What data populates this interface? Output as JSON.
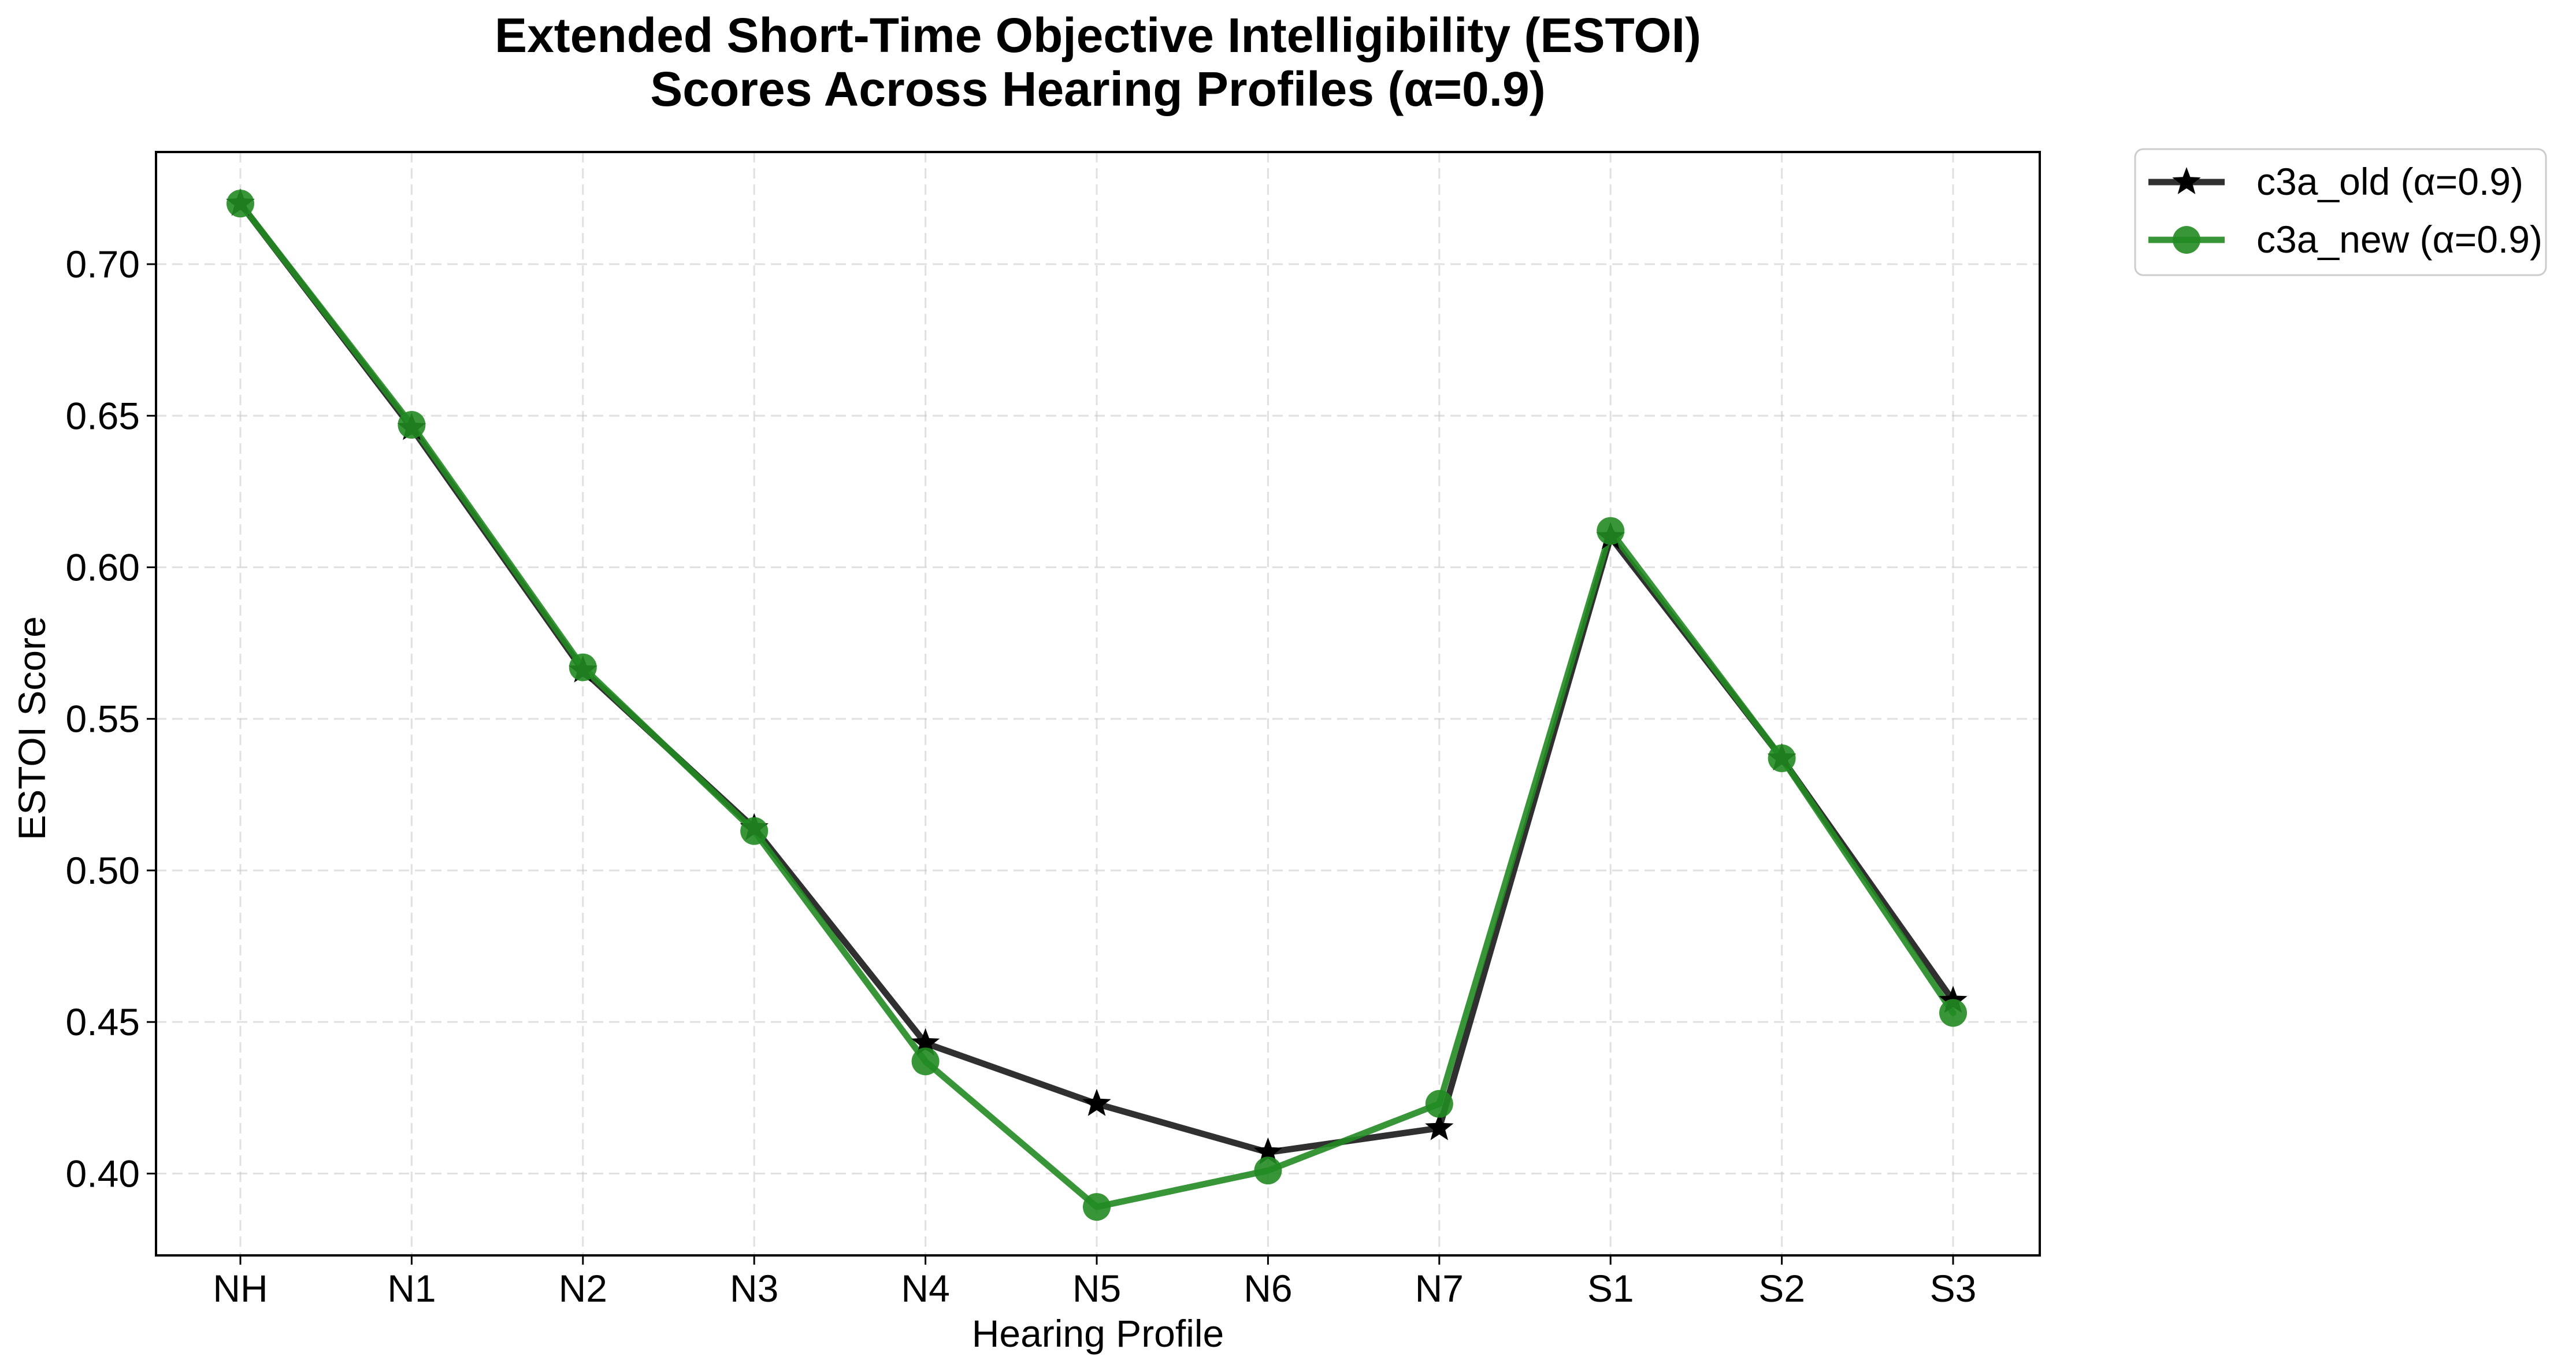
{
  "chart_data": {
    "type": "line",
    "title": "Extended Short-Time Objective Intelligibility (ESTOI)",
    "subtitle": "Scores Across Hearing Profiles (α=0.9)",
    "xlabel": "Hearing Profile",
    "ylabel": "ESTOI Score",
    "categories": [
      "NH",
      "N1",
      "N2",
      "N3",
      "N4",
      "N5",
      "N6",
      "N7",
      "S1",
      "S2",
      "S3"
    ],
    "ylim": [
      0.373,
      0.737
    ],
    "yticks": [
      0.4,
      0.45,
      0.5,
      0.55,
      0.6,
      0.65,
      0.7
    ],
    "ytick_labels": [
      "0.40",
      "0.45",
      "0.50",
      "0.55",
      "0.60",
      "0.65",
      "0.70"
    ],
    "grid": true,
    "legend_position": "outside top-right",
    "series": [
      {
        "name": "c3a_old (α=0.9)",
        "color": "#1a1a1a",
        "marker": "star",
        "values": [
          0.72,
          0.646,
          0.566,
          0.514,
          0.443,
          0.423,
          0.407,
          0.415,
          0.61,
          0.537,
          0.457
        ]
      },
      {
        "name": "c3a_new (α=0.9)",
        "color": "#228b22",
        "marker": "circle",
        "values": [
          0.72,
          0.647,
          0.567,
          0.513,
          0.437,
          0.389,
          0.401,
          0.423,
          0.612,
          0.537,
          0.453
        ]
      }
    ]
  }
}
